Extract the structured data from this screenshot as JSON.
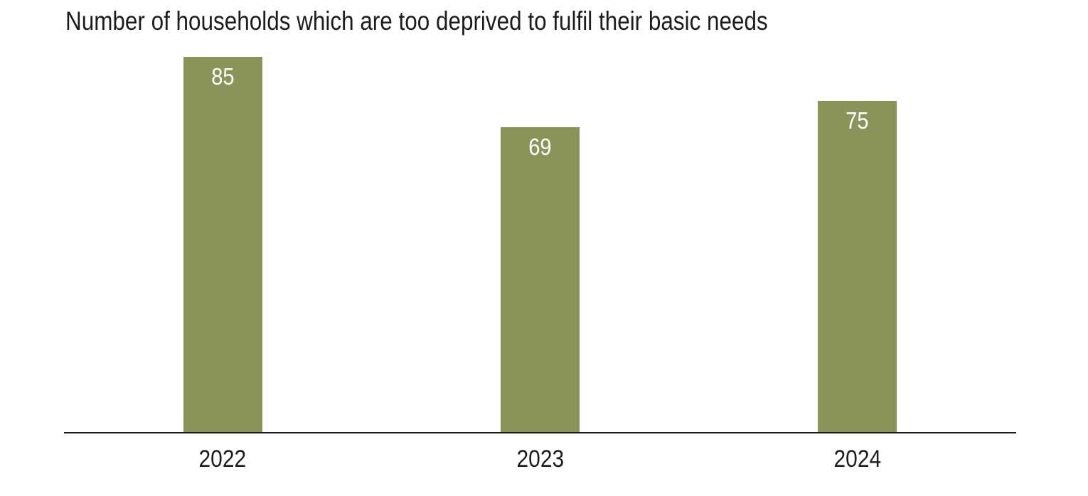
{
  "chart_data": {
    "type": "bar",
    "title": "Number of households which are too deprived to fulfil their basic needs",
    "categories": [
      "2022",
      "2023",
      "2024"
    ],
    "values": [
      85,
      69,
      75
    ],
    "xlabel": "",
    "ylabel": "",
    "ylim": [
      0,
      85
    ],
    "grid": false,
    "legend": "none",
    "data_labels_position": "inside-top",
    "colors": {
      "bar": "#8a9458",
      "data_label": "#ffffff",
      "axis_line": "#1c1c1c",
      "text": "#1c1c1c",
      "background": "#ffffff"
    }
  }
}
